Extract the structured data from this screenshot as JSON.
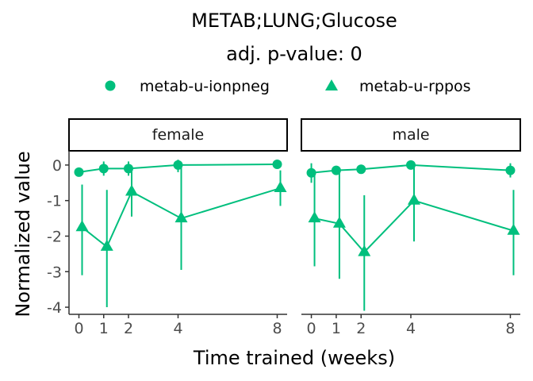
{
  "chart_data": {
    "type": "line",
    "title": "METAB;LUNG;Glucose",
    "subtitle": "adj. p-value: 0",
    "xlabel": "Time trained (weeks)",
    "ylabel": "Normalized value",
    "x_ticks": [
      0,
      1,
      2,
      4,
      8
    ],
    "y_ticks": [
      0,
      -1,
      -2,
      -3,
      -4
    ],
    "ylim": [
      -4.2,
      0.4
    ],
    "grid": false,
    "legend_position": "top",
    "color": "#00BF7D",
    "legend": [
      {
        "name": "metab-u-ionpneg",
        "marker": "circle"
      },
      {
        "name": "metab-u-rppos",
        "marker": "triangle"
      }
    ],
    "panels": [
      {
        "label": "female",
        "series": [
          {
            "name": "metab-u-ionpneg",
            "marker": "circle",
            "points": [
              {
                "x": 0,
                "y": -0.2,
                "lo": -0.2,
                "hi": -0.2
              },
              {
                "x": 1,
                "y": -0.1,
                "lo": -0.3,
                "hi": 0.1
              },
              {
                "x": 2,
                "y": -0.1,
                "lo": -0.3,
                "hi": 0.1
              },
              {
                "x": 4,
                "y": 0.0,
                "lo": -0.2,
                "hi": 0.15
              },
              {
                "x": 8,
                "y": 0.02,
                "lo": 0.02,
                "hi": 0.02
              }
            ]
          },
          {
            "name": "metab-u-rppos",
            "marker": "triangle",
            "points": [
              {
                "x": 0,
                "y": -1.75,
                "lo": -3.1,
                "hi": -0.55
              },
              {
                "x": 1,
                "y": -2.3,
                "lo": -4.0,
                "hi": -0.7
              },
              {
                "x": 2,
                "y": -0.75,
                "lo": -1.45,
                "hi": -0.1
              },
              {
                "x": 4,
                "y": -1.5,
                "lo": -2.95,
                "hi": -0.05
              },
              {
                "x": 8,
                "y": -0.65,
                "lo": -1.15,
                "hi": -0.15
              }
            ]
          }
        ]
      },
      {
        "label": "male",
        "series": [
          {
            "name": "metab-u-ionpneg",
            "marker": "circle",
            "points": [
              {
                "x": 0,
                "y": -0.22,
                "lo": -0.5,
                "hi": 0.05
              },
              {
                "x": 1,
                "y": -0.15,
                "lo": -0.2,
                "hi": -0.1
              },
              {
                "x": 2,
                "y": -0.12,
                "lo": -0.12,
                "hi": -0.12
              },
              {
                "x": 4,
                "y": 0.0,
                "lo": 0.0,
                "hi": 0.0
              },
              {
                "x": 8,
                "y": -0.15,
                "lo": -0.35,
                "hi": 0.05
              }
            ]
          },
          {
            "name": "metab-u-rppos",
            "marker": "triangle",
            "points": [
              {
                "x": 0,
                "y": -1.5,
                "lo": -2.85,
                "hi": -0.15
              },
              {
                "x": 1,
                "y": -1.65,
                "lo": -3.2,
                "hi": -0.15
              },
              {
                "x": 2,
                "y": -2.45,
                "lo": -4.1,
                "hi": -0.85
              },
              {
                "x": 4,
                "y": -1.0,
                "lo": -2.15,
                "hi": 0.0
              },
              {
                "x": 8,
                "y": -1.85,
                "lo": -3.1,
                "hi": -0.7
              }
            ]
          }
        ]
      }
    ]
  }
}
